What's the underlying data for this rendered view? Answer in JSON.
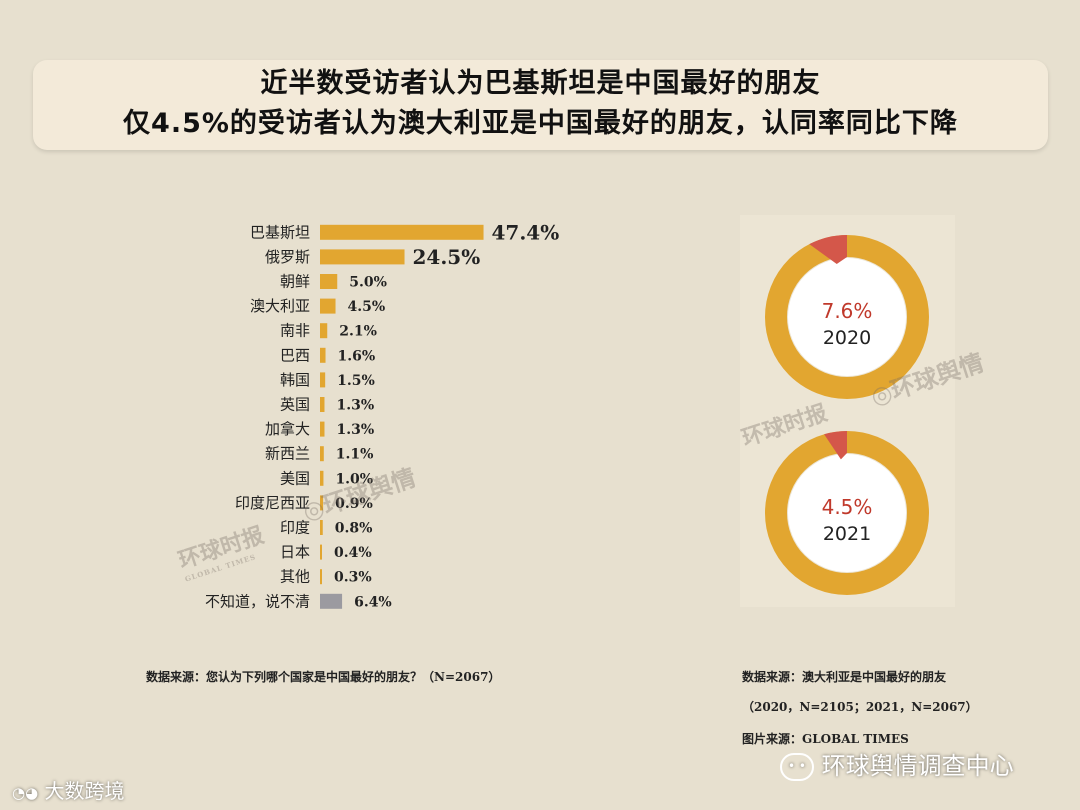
{
  "header": {
    "line1": "近半数受访者认为巴基斯坦是中国最好的朋友",
    "line2": "仅4.5%的受访者认为澳大利亚是中国最好的朋友，认同率同比下降"
  },
  "chart_data": [
    {
      "type": "bar",
      "orientation": "horizontal",
      "categories": [
        "巴基斯坦",
        "俄罗斯",
        "朝鲜",
        "澳大利亚",
        "南非",
        "巴西",
        "韩国",
        "英国",
        "加拿大",
        "新西兰",
        "美国",
        "印度尼西亚",
        "印度",
        "日本",
        "其他",
        "不知道，说不清"
      ],
      "values": [
        47.4,
        24.5,
        5.0,
        4.5,
        2.1,
        1.6,
        1.5,
        1.3,
        1.3,
        1.1,
        1.0,
        0.9,
        0.8,
        0.4,
        0.3,
        6.4
      ],
      "value_labels": [
        "47.4%",
        "24.5%",
        "5.0%",
        "4.5%",
        "2.1%",
        "1.6%",
        "1.5%",
        "1.3%",
        "1.3%",
        "1.1%",
        "1.0%",
        "0.9%",
        "0.8%",
        "0.4%",
        "0.3%",
        "6.4%"
      ],
      "colors": {
        "bar": "#e2a630",
        "unknown_bar": "#9b9aa0"
      }
    },
    {
      "type": "pie",
      "donuts": [
        {
          "year": "2020",
          "value": 7.6,
          "label": "7.6%"
        },
        {
          "year": "2021",
          "value": 4.5,
          "label": "4.5%"
        }
      ],
      "colors": {
        "highlight": "#d4574a",
        "rest": "#e2a630",
        "text": "#c0392b"
      }
    }
  ],
  "sources": {
    "left": "数据来源：您认为下列哪个国家是中国最好的朋友？（N=2067）",
    "right_line1": "数据来源：澳大利亚是中国最好的朋友",
    "right_line2": "（2020，N=2105；2021，N=2067）",
    "right_line3": "图片来源：GLOBAL TIMES"
  },
  "watermarks": {
    "brand": "环球舆情",
    "paper": "环球时报",
    "paper_en": "GLOBAL TIMES"
  },
  "footer": {
    "left_brand": "大数跨境",
    "right_brand": "环球舆情调查中心"
  }
}
